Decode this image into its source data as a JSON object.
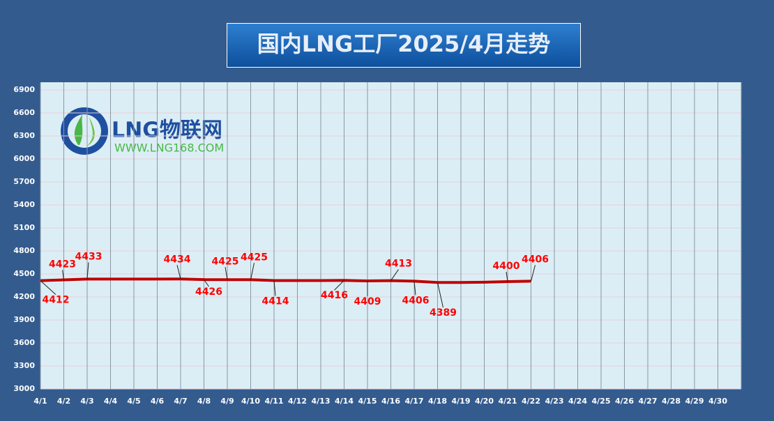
{
  "chart_data": {
    "type": "line",
    "title": "国内LNG工厂2025/4月走势",
    "logo": {
      "name": "LNG物联网",
      "url": "WWW.LNG168.COM"
    },
    "categories": [
      "4/1",
      "4/2",
      "4/3",
      "4/4",
      "4/5",
      "4/6",
      "4/7",
      "4/8",
      "4/9",
      "4/10",
      "4/11",
      "4/12",
      "4/13",
      "4/14",
      "4/15",
      "4/16",
      "4/17",
      "4/18",
      "4/19",
      "4/20",
      "4/21",
      "4/22",
      "4/23",
      "4/24",
      "4/25",
      "4/26",
      "4/27",
      "4/28",
      "4/29",
      "4/30"
    ],
    "series": [
      {
        "name": "LNG",
        "color": "#c00000",
        "values": [
          4412,
          4423,
          4433,
          4433,
          4433,
          4433,
          4434,
          4426,
          4425,
          4425,
          4414,
          4414,
          4414,
          4416,
          4409,
          4413,
          4406,
          4389,
          4389,
          4392,
          4400,
          4406,
          null,
          null,
          null,
          null,
          null,
          null,
          null,
          null
        ],
        "value_labels": [
          "4412",
          "4423",
          "4433",
          null,
          null,
          null,
          "4434",
          "4426",
          "4425",
          "4425",
          "4414",
          null,
          null,
          "4416",
          "4409",
          "4413",
          "4406",
          "4389",
          null,
          null,
          "4400",
          "4406",
          null,
          null,
          null,
          null,
          null,
          null,
          null,
          null
        ]
      }
    ],
    "ylim": [
      3000,
      7000
    ],
    "yticks": [
      3000,
      3300,
      3600,
      3900,
      4200,
      4500,
      4800,
      5100,
      5400,
      5700,
      6000,
      6300,
      6600,
      6900
    ],
    "grid": true
  }
}
